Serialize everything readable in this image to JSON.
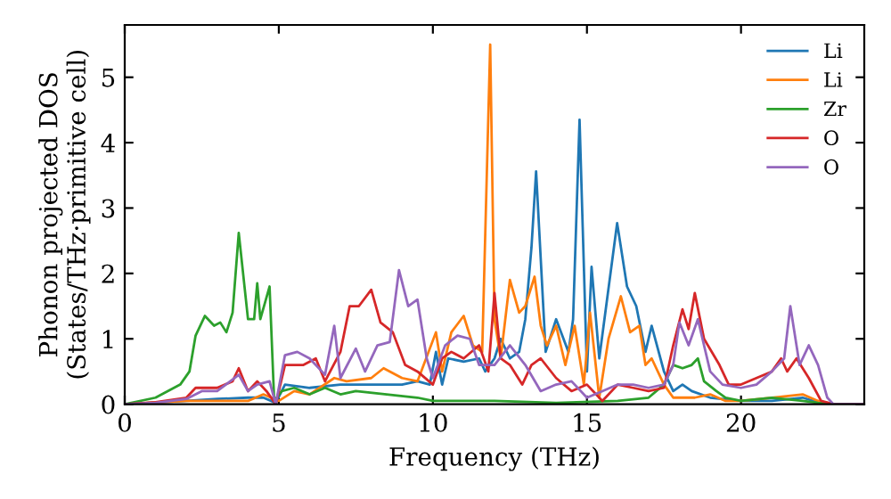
{
  "chart_data": {
    "type": "line",
    "xlabel": "Frequency (THz)",
    "ylabel": "Phonon projected DOS\n(States/THz·primitive cell)",
    "xlim": [
      0,
      24
    ],
    "ylim": [
      0,
      5.8
    ],
    "xticks": [
      0,
      5,
      10,
      15,
      20
    ],
    "yticks": [
      0,
      1,
      2,
      3,
      4,
      5
    ],
    "grid": false,
    "legend": "top right",
    "marker": "none",
    "line_style": "solid",
    "series": [
      {
        "name": "Li",
        "color": "#1f77b4",
        "x": [
          0,
          2,
          3,
          4,
          4.5,
          4.9,
          5.2,
          6,
          7,
          8,
          9,
          9.5,
          9.9,
          10.1,
          10.3,
          10.5,
          11,
          11.5,
          11.7,
          12,
          12.2,
          12.5,
          12.8,
          13.0,
          13.2,
          13.35,
          13.66,
          14.0,
          14.4,
          14.55,
          14.76,
          15.0,
          15.15,
          15.4,
          15.98,
          16.3,
          16.6,
          16.9,
          17.1,
          17.5,
          17.8,
          18.1,
          18.4,
          19,
          20,
          21,
          22,
          22.5,
          23,
          24
        ],
        "values": [
          0,
          0.05,
          0.08,
          0.1,
          0.1,
          0.02,
          0.3,
          0.25,
          0.3,
          0.3,
          0.3,
          0.35,
          0.3,
          0.8,
          0.3,
          0.7,
          0.65,
          0.7,
          0.5,
          0.7,
          1.0,
          0.7,
          0.8,
          1.3,
          2.4,
          3.56,
          0.8,
          1.3,
          0.8,
          1.3,
          4.35,
          0.5,
          2.1,
          0.7,
          2.77,
          1.8,
          1.5,
          0.8,
          1.2,
          0.5,
          0.2,
          0.3,
          0.2,
          0.1,
          0.05,
          0.05,
          0.1,
          0.03,
          0,
          0
        ]
      },
      {
        "name": "Li",
        "color": "#ff7f0e",
        "x": [
          0,
          2,
          4,
          4.5,
          5,
          5.5,
          6,
          6.8,
          7.2,
          8,
          8.4,
          9,
          9.5,
          10.1,
          10.3,
          10.6,
          11,
          11.3,
          11.6,
          11.86,
          12.0,
          12.2,
          12.5,
          12.8,
          13.0,
          13.3,
          13.5,
          13.7,
          14,
          14.3,
          14.6,
          14.9,
          15.1,
          15.4,
          15.7,
          16.1,
          16.4,
          16.7,
          16.9,
          17.1,
          17.5,
          17.8,
          18.5,
          19,
          19.5,
          20,
          21,
          22,
          22.5,
          23,
          24
        ],
        "values": [
          0,
          0.05,
          0.05,
          0.15,
          0.05,
          0.2,
          0.15,
          0.4,
          0.35,
          0.4,
          0.55,
          0.4,
          0.35,
          1.1,
          0.5,
          1.1,
          1.35,
          0.9,
          0.8,
          5.5,
          1.3,
          0.7,
          1.9,
          1.4,
          1.5,
          1.95,
          1.2,
          0.9,
          1.2,
          0.6,
          1.2,
          0.3,
          1.4,
          0.1,
          1.0,
          1.65,
          1.1,
          1.2,
          0.6,
          0.7,
          0.3,
          0.1,
          0.1,
          0.15,
          0.05,
          0.05,
          0.1,
          0.15,
          0.05,
          0,
          0
        ]
      },
      {
        "name": "Zr",
        "color": "#2ca02c",
        "x": [
          0,
          1,
          1.8,
          2.1,
          2.3,
          2.6,
          2.9,
          3.1,
          3.3,
          3.5,
          3.7,
          4.0,
          4.2,
          4.3,
          4.4,
          4.7,
          4.85,
          5.1,
          5.5,
          6.0,
          6.5,
          7,
          7.5,
          8.5,
          9.5,
          10,
          12,
          14,
          16,
          17,
          17.5,
          17.8,
          18.1,
          18.4,
          18.6,
          18.8,
          19.2,
          19.5,
          20,
          21,
          22,
          22.5,
          23,
          24
        ],
        "values": [
          0,
          0.1,
          0.3,
          0.5,
          1.05,
          1.35,
          1.2,
          1.25,
          1.1,
          1.4,
          2.62,
          1.3,
          1.3,
          1.85,
          1.3,
          1.8,
          0.05,
          0.2,
          0.25,
          0.15,
          0.25,
          0.15,
          0.2,
          0.15,
          0.1,
          0.05,
          0.05,
          0.02,
          0.05,
          0.1,
          0.3,
          0.6,
          0.55,
          0.6,
          0.7,
          0.35,
          0.2,
          0.1,
          0.05,
          0.1,
          0.05,
          0.02,
          0,
          0
        ]
      },
      {
        "name": "O",
        "color": "#d62728",
        "x": [
          0,
          1,
          2,
          2.3,
          3,
          3.5,
          3.7,
          4.0,
          4.3,
          4.6,
          4.9,
          5.2,
          5.8,
          6.2,
          6.5,
          7,
          7.3,
          7.6,
          8.0,
          8.3,
          8.7,
          9.1,
          9.5,
          10,
          10.3,
          10.6,
          11,
          11.5,
          11.8,
          12.0,
          12.2,
          12.5,
          12.9,
          13.2,
          13.5,
          14,
          14.5,
          15,
          15.5,
          16,
          16.5,
          17,
          17.5,
          17.8,
          18.1,
          18.3,
          18.5,
          18.8,
          19.3,
          19.6,
          20,
          20.5,
          21,
          21.3,
          21.5,
          21.8,
          22.2,
          22.6,
          23,
          24
        ],
        "values": [
          0,
          0.03,
          0.1,
          0.25,
          0.25,
          0.35,
          0.55,
          0.2,
          0.35,
          0.2,
          0.0,
          0.6,
          0.6,
          0.7,
          0.35,
          0.8,
          1.5,
          1.5,
          1.75,
          1.25,
          1.1,
          0.6,
          0.5,
          0.3,
          0.7,
          0.8,
          0.7,
          0.9,
          0.5,
          1.7,
          0.7,
          0.6,
          0.3,
          0.6,
          0.7,
          0.4,
          0.2,
          0.3,
          0.05,
          0.3,
          0.25,
          0.2,
          0.25,
          0.9,
          1.45,
          1.15,
          1.7,
          1.0,
          0.6,
          0.3,
          0.3,
          0.4,
          0.5,
          0.7,
          0.5,
          0.7,
          0.4,
          0.05,
          0,
          0
        ]
      },
      {
        "name": "O",
        "color": "#9467bd",
        "x": [
          0,
          1,
          2,
          2.5,
          3,
          3.7,
          4.0,
          4.3,
          4.7,
          4.9,
          5.2,
          5.6,
          6.0,
          6.5,
          6.8,
          7.0,
          7.5,
          7.8,
          8.2,
          8.6,
          8.9,
          9.2,
          9.5,
          9.8,
          10,
          10.4,
          10.8,
          11.2,
          11.5,
          12,
          12.5,
          13,
          13.5,
          14,
          14.5,
          15,
          15.5,
          16,
          16.5,
          17,
          17.5,
          17.8,
          18,
          18.3,
          18.6,
          19,
          19.4,
          20,
          20.5,
          21,
          21.4,
          21.6,
          21.9,
          22.2,
          22.5,
          22.8,
          23,
          24
        ],
        "values": [
          0,
          0.02,
          0.08,
          0.2,
          0.2,
          0.45,
          0.2,
          0.3,
          0.35,
          0.0,
          0.75,
          0.8,
          0.7,
          0.45,
          1.2,
          0.4,
          0.85,
          0.5,
          0.9,
          0.95,
          2.05,
          1.5,
          1.6,
          0.7,
          0.4,
          0.9,
          1.05,
          1.0,
          0.6,
          0.6,
          0.9,
          0.6,
          0.2,
          0.3,
          0.35,
          0.1,
          0.2,
          0.3,
          0.3,
          0.25,
          0.3,
          0.6,
          1.25,
          0.9,
          1.3,
          0.5,
          0.3,
          0.25,
          0.3,
          0.5,
          0.7,
          1.5,
          0.6,
          0.9,
          0.6,
          0.1,
          0,
          0
        ]
      }
    ]
  }
}
